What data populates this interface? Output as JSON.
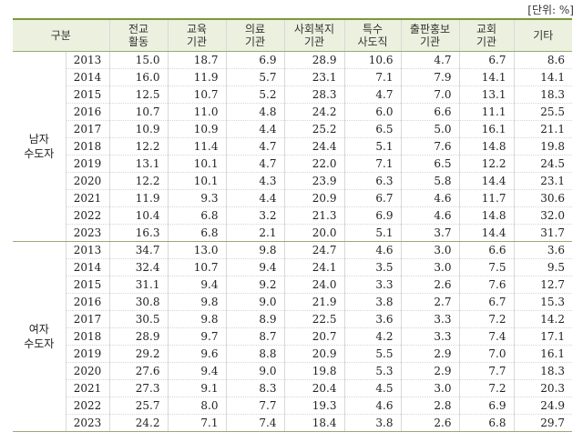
{
  "unit_label": "[단위: %]",
  "header": {
    "group_label": "구분",
    "columns": [
      {
        "line1": "전교",
        "line2": "활동"
      },
      {
        "line1": "교육",
        "line2": "기관"
      },
      {
        "line1": "의료",
        "line2": "기관"
      },
      {
        "line1": "사회복지",
        "line2": "기관"
      },
      {
        "line1": "특수",
        "line2": "사도직"
      },
      {
        "line1": "출판홍보",
        "line2": "기관"
      },
      {
        "line1": "교회",
        "line2": "기관"
      },
      {
        "line1": "기타",
        "line2": ""
      }
    ]
  },
  "groups": [
    {
      "label_line1": "남자",
      "label_line2": "수도자",
      "rows": [
        {
          "year": "2013",
          "values": [
            "15.0",
            "18.7",
            "6.9",
            "28.9",
            "10.6",
            "4.7",
            "6.7",
            "8.6"
          ]
        },
        {
          "year": "2014",
          "values": [
            "16.0",
            "11.9",
            "5.7",
            "23.1",
            "7.1",
            "7.9",
            "14.1",
            "14.1"
          ]
        },
        {
          "year": "2015",
          "values": [
            "12.5",
            "10.7",
            "5.2",
            "28.3",
            "4.7",
            "7.0",
            "13.1",
            "18.3"
          ]
        },
        {
          "year": "2016",
          "values": [
            "10.7",
            "11.0",
            "4.8",
            "24.2",
            "6.0",
            "6.6",
            "11.1",
            "25.5"
          ]
        },
        {
          "year": "2017",
          "values": [
            "10.9",
            "10.9",
            "4.4",
            "25.2",
            "6.5",
            "5.0",
            "16.1",
            "21.1"
          ]
        },
        {
          "year": "2018",
          "values": [
            "12.2",
            "11.4",
            "4.7",
            "24.4",
            "5.1",
            "7.6",
            "14.8",
            "19.8"
          ]
        },
        {
          "year": "2019",
          "values": [
            "13.1",
            "10.1",
            "4.7",
            "22.0",
            "7.1",
            "6.5",
            "12.2",
            "24.5"
          ]
        },
        {
          "year": "2020",
          "values": [
            "12.2",
            "10.1",
            "4.3",
            "23.9",
            "6.3",
            "5.8",
            "14.4",
            "23.1"
          ]
        },
        {
          "year": "2021",
          "values": [
            "11.9",
            "9.3",
            "4.4",
            "20.9",
            "6.7",
            "4.6",
            "11.7",
            "30.6"
          ]
        },
        {
          "year": "2022",
          "values": [
            "10.4",
            "6.8",
            "3.2",
            "21.3",
            "6.9",
            "4.6",
            "14.8",
            "32.0"
          ]
        },
        {
          "year": "2023",
          "values": [
            "16.3",
            "6.8",
            "2.1",
            "20.0",
            "5.1",
            "3.7",
            "14.4",
            "31.7"
          ]
        }
      ]
    },
    {
      "label_line1": "여자",
      "label_line2": "수도자",
      "rows": [
        {
          "year": "2013",
          "values": [
            "34.7",
            "13.0",
            "9.8",
            "24.7",
            "4.6",
            "3.0",
            "6.6",
            "3.6"
          ]
        },
        {
          "year": "2014",
          "values": [
            "32.4",
            "10.7",
            "9.4",
            "24.1",
            "3.5",
            "3.0",
            "7.5",
            "9.5"
          ]
        },
        {
          "year": "2015",
          "values": [
            "31.1",
            "9.4",
            "9.2",
            "24.0",
            "3.3",
            "2.6",
            "7.6",
            "12.7"
          ]
        },
        {
          "year": "2016",
          "values": [
            "30.8",
            "9.8",
            "9.0",
            "21.9",
            "3.8",
            "2.7",
            "6.7",
            "15.3"
          ]
        },
        {
          "year": "2017",
          "values": [
            "30.5",
            "9.8",
            "8.9",
            "22.5",
            "3.6",
            "3.3",
            "7.2",
            "14.2"
          ]
        },
        {
          "year": "2018",
          "values": [
            "28.9",
            "9.7",
            "8.7",
            "20.7",
            "4.2",
            "3.3",
            "7.4",
            "17.1"
          ]
        },
        {
          "year": "2019",
          "values": [
            "29.2",
            "9.6",
            "8.8",
            "20.9",
            "5.5",
            "2.9",
            "7.0",
            "16.1"
          ]
        },
        {
          "year": "2020",
          "values": [
            "27.6",
            "9.4",
            "9.0",
            "19.8",
            "5.3",
            "2.9",
            "7.7",
            "18.3"
          ]
        },
        {
          "year": "2021",
          "values": [
            "27.3",
            "9.1",
            "8.3",
            "20.4",
            "4.5",
            "3.0",
            "7.2",
            "20.3"
          ]
        },
        {
          "year": "2022",
          "values": [
            "25.7",
            "8.0",
            "7.7",
            "19.3",
            "4.6",
            "2.8",
            "6.9",
            "24.9"
          ]
        },
        {
          "year": "2023",
          "values": [
            "24.2",
            "7.1",
            "7.4",
            "18.4",
            "3.8",
            "2.6",
            "6.8",
            "29.7"
          ]
        }
      ]
    }
  ]
}
